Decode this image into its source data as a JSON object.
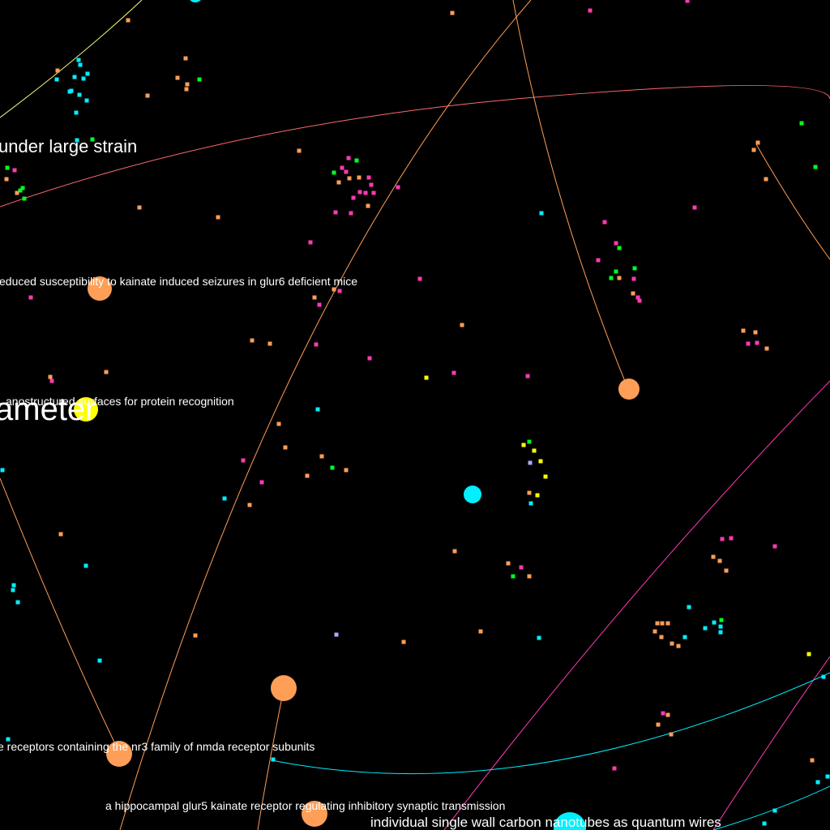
{
  "app": {
    "background": "#000000"
  },
  "palette": {
    "orange": "#ff9e57",
    "cyan": "#00f0ff",
    "yellow": "#ffff00",
    "green": "#00ff22",
    "magenta": "#ff3ab2",
    "lavender": "#b2a6ff",
    "salmon": "#ff6b6b",
    "pale_yellow": "#ffff80"
  },
  "labels": {
    "strain": "under large strain",
    "kainate_seizures": "educed susceptibility to kainate induced seizures in glur6 deficient mice",
    "diameter": "ameter",
    "protein_recognition": "anostructured surfaces for protein recognition",
    "nmda": "e receptors containing the nr3 family of nmda receptor subunits",
    "glur5": "a hippocampal glur5 kainate receptor regulating inhibitory synaptic transmission",
    "nanotubes": "individual single wall carbon nanotubes as quantum wires"
  }
}
